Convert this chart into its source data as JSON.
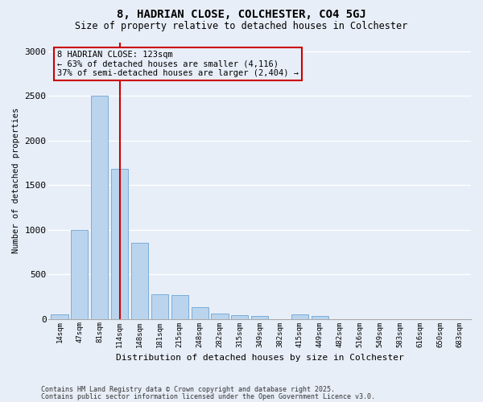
{
  "title_line1": "8, HADRIAN CLOSE, COLCHESTER, CO4 5GJ",
  "title_line2": "Size of property relative to detached houses in Colchester",
  "xlabel": "Distribution of detached houses by size in Colchester",
  "ylabel": "Number of detached properties",
  "footnote1": "Contains HM Land Registry data © Crown copyright and database right 2025.",
  "footnote2": "Contains public sector information licensed under the Open Government Licence v3.0.",
  "bar_labels": [
    "14sqm",
    "47sqm",
    "81sqm",
    "114sqm",
    "148sqm",
    "181sqm",
    "215sqm",
    "248sqm",
    "282sqm",
    "315sqm",
    "349sqm",
    "382sqm",
    "415sqm",
    "449sqm",
    "482sqm",
    "516sqm",
    "549sqm",
    "583sqm",
    "616sqm",
    "650sqm",
    "683sqm"
  ],
  "bar_values": [
    50,
    1000,
    2500,
    1680,
    850,
    280,
    270,
    130,
    60,
    40,
    30,
    0,
    50,
    30,
    0,
    0,
    0,
    0,
    0,
    0,
    0
  ],
  "bar_color": "#bad4ed",
  "bar_edge_color": "#7aadda",
  "bg_color": "#e8eef8",
  "grid_color": "#ffffff",
  "vline_color": "#cc0000",
  "vline_pos": 3.0,
  "annotation_line1": "8 HADRIAN CLOSE: 123sqm",
  "annotation_line2": "← 63% of detached houses are smaller (4,116)",
  "annotation_line3": "37% of semi-detached houses are larger (2,404) →",
  "annotation_box_edgecolor": "#cc0000",
  "ylim": [
    0,
    3100
  ],
  "yticks": [
    0,
    500,
    1000,
    1500,
    2000,
    2500,
    3000
  ]
}
